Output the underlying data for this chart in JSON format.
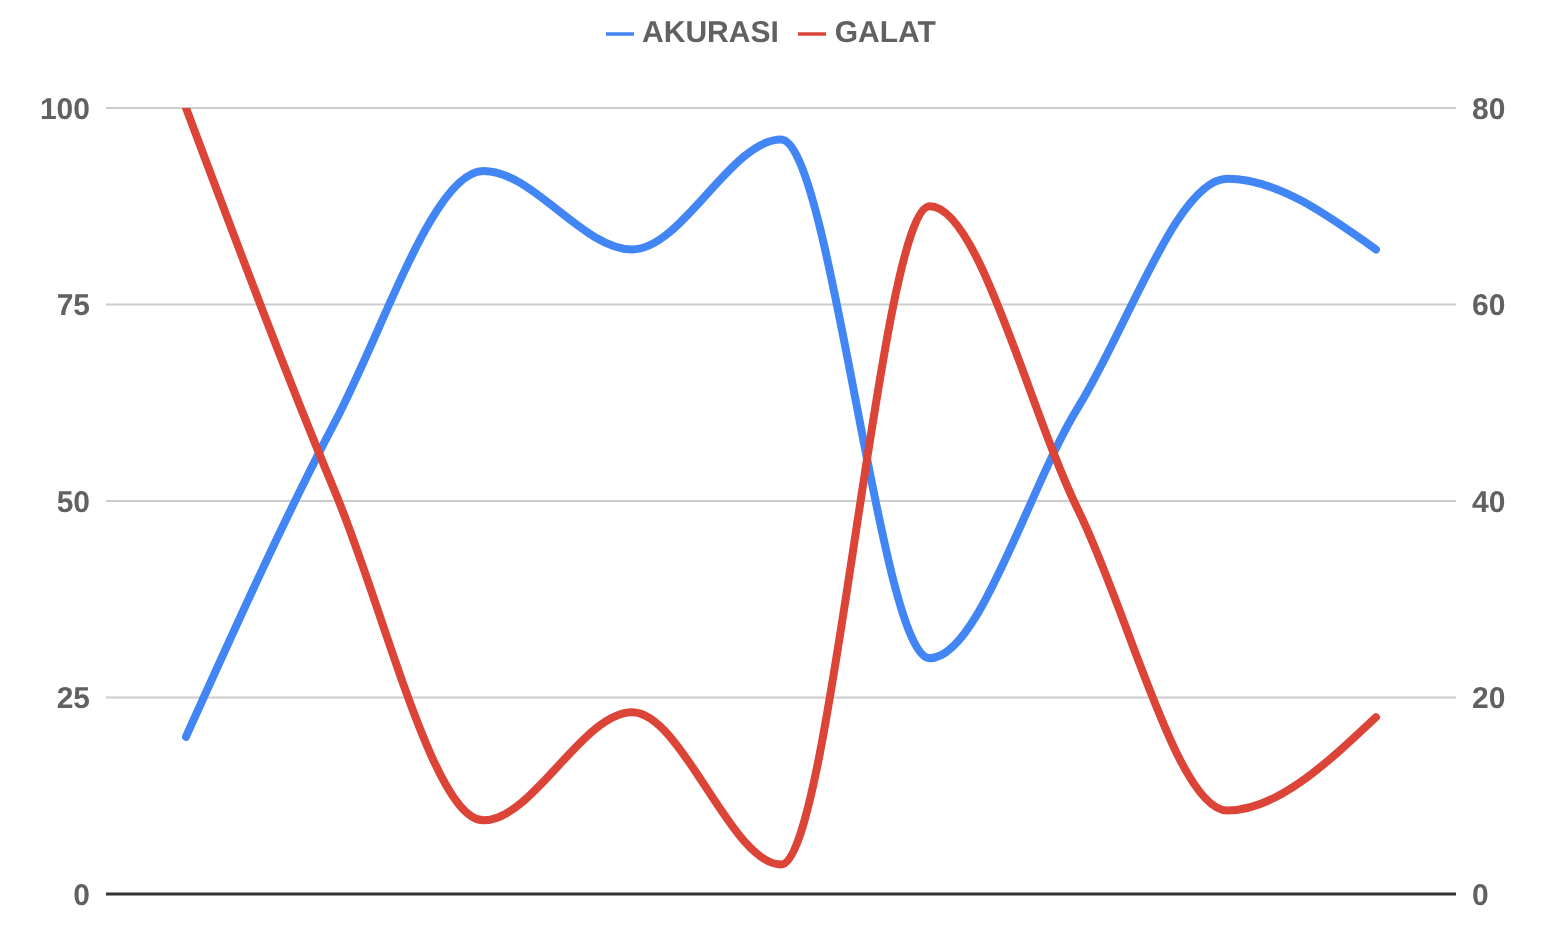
{
  "chart_data": {
    "type": "line",
    "categories": [
      null,
      null,
      null,
      null,
      null,
      null,
      null,
      null,
      null
    ],
    "series": [
      {
        "name": "AKURASI",
        "color": "#4285f4",
        "values": [
          20,
          60,
          92,
          82,
          96,
          30,
          62,
          91,
          82
        ]
      },
      {
        "name": "GALAT",
        "color": "#db4437",
        "axis": "y2",
        "values": [
          80,
          41,
          7.5,
          18.5,
          3,
          70,
          39,
          8.5,
          18
        ]
      }
    ],
    "ylim": [
      0,
      100
    ],
    "yticks": [
      0,
      25,
      50,
      75,
      100
    ],
    "y2lim": [
      0,
      80
    ],
    "y2ticks": [
      0,
      20,
      40,
      60,
      80
    ],
    "grid": "y",
    "legend": "top",
    "marker": "none",
    "line_style": "solid"
  }
}
